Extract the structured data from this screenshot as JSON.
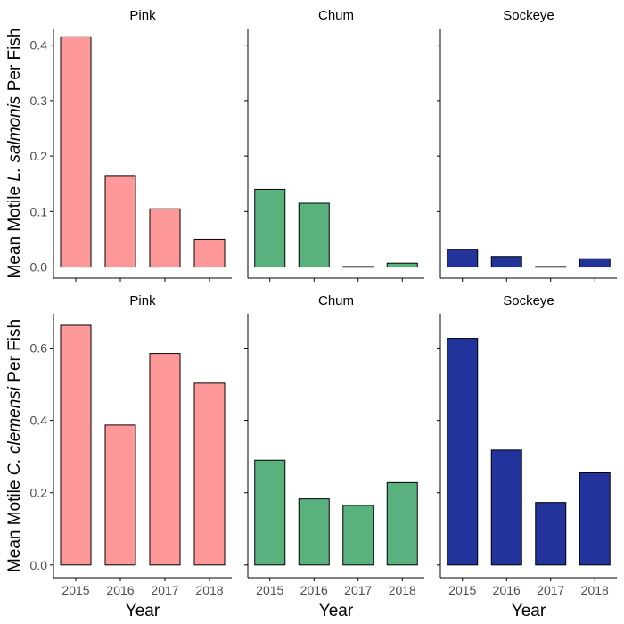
{
  "chart_data": {
    "type": "bar",
    "layout": "facet-grid-2x3",
    "xlabel": "Year",
    "categories": [
      "2015",
      "2016",
      "2017",
      "2018"
    ],
    "rows": [
      {
        "ylabel_prefix": "Mean Motile ",
        "ylabel_species": "L. salmonis",
        "ylabel_suffix": "  Per Fish",
        "ylim": [
          -0.02,
          0.43
        ],
        "yticks": [
          0.0,
          0.1,
          0.2,
          0.3,
          0.4
        ],
        "ytick_labels": [
          "0.0",
          "0.1",
          "0.2",
          "0.3",
          "0.4"
        ],
        "panels": [
          {
            "title": "Pink",
            "color": "#FF9999",
            "values": [
              0.415,
              0.165,
              0.105,
              0.05
            ]
          },
          {
            "title": "Chum",
            "color": "#59B17E",
            "values": [
              0.14,
              0.115,
              0.001,
              0.007
            ]
          },
          {
            "title": "Sockeye",
            "color": "#22349C",
            "values": [
              0.032,
              0.019,
              0.001,
              0.015
            ]
          }
        ]
      },
      {
        "ylabel_prefix": "Mean Motile ",
        "ylabel_species": "C. clemensi",
        "ylabel_suffix": "  Per Fish",
        "ylim": [
          -0.035,
          0.695
        ],
        "yticks": [
          0.0,
          0.2,
          0.4,
          0.6
        ],
        "ytick_labels": [
          "0.0",
          "0.2",
          "0.4",
          "0.6"
        ],
        "panels": [
          {
            "title": "Pink",
            "color": "#FF9999",
            "values": [
              0.663,
              0.387,
              0.585,
              0.503
            ]
          },
          {
            "title": "Chum",
            "color": "#59B17E",
            "values": [
              0.29,
              0.183,
              0.165,
              0.228
            ]
          },
          {
            "title": "Sockeye",
            "color": "#22349C",
            "values": [
              0.627,
              0.318,
              0.173,
              0.255
            ]
          }
        ]
      }
    ]
  }
}
